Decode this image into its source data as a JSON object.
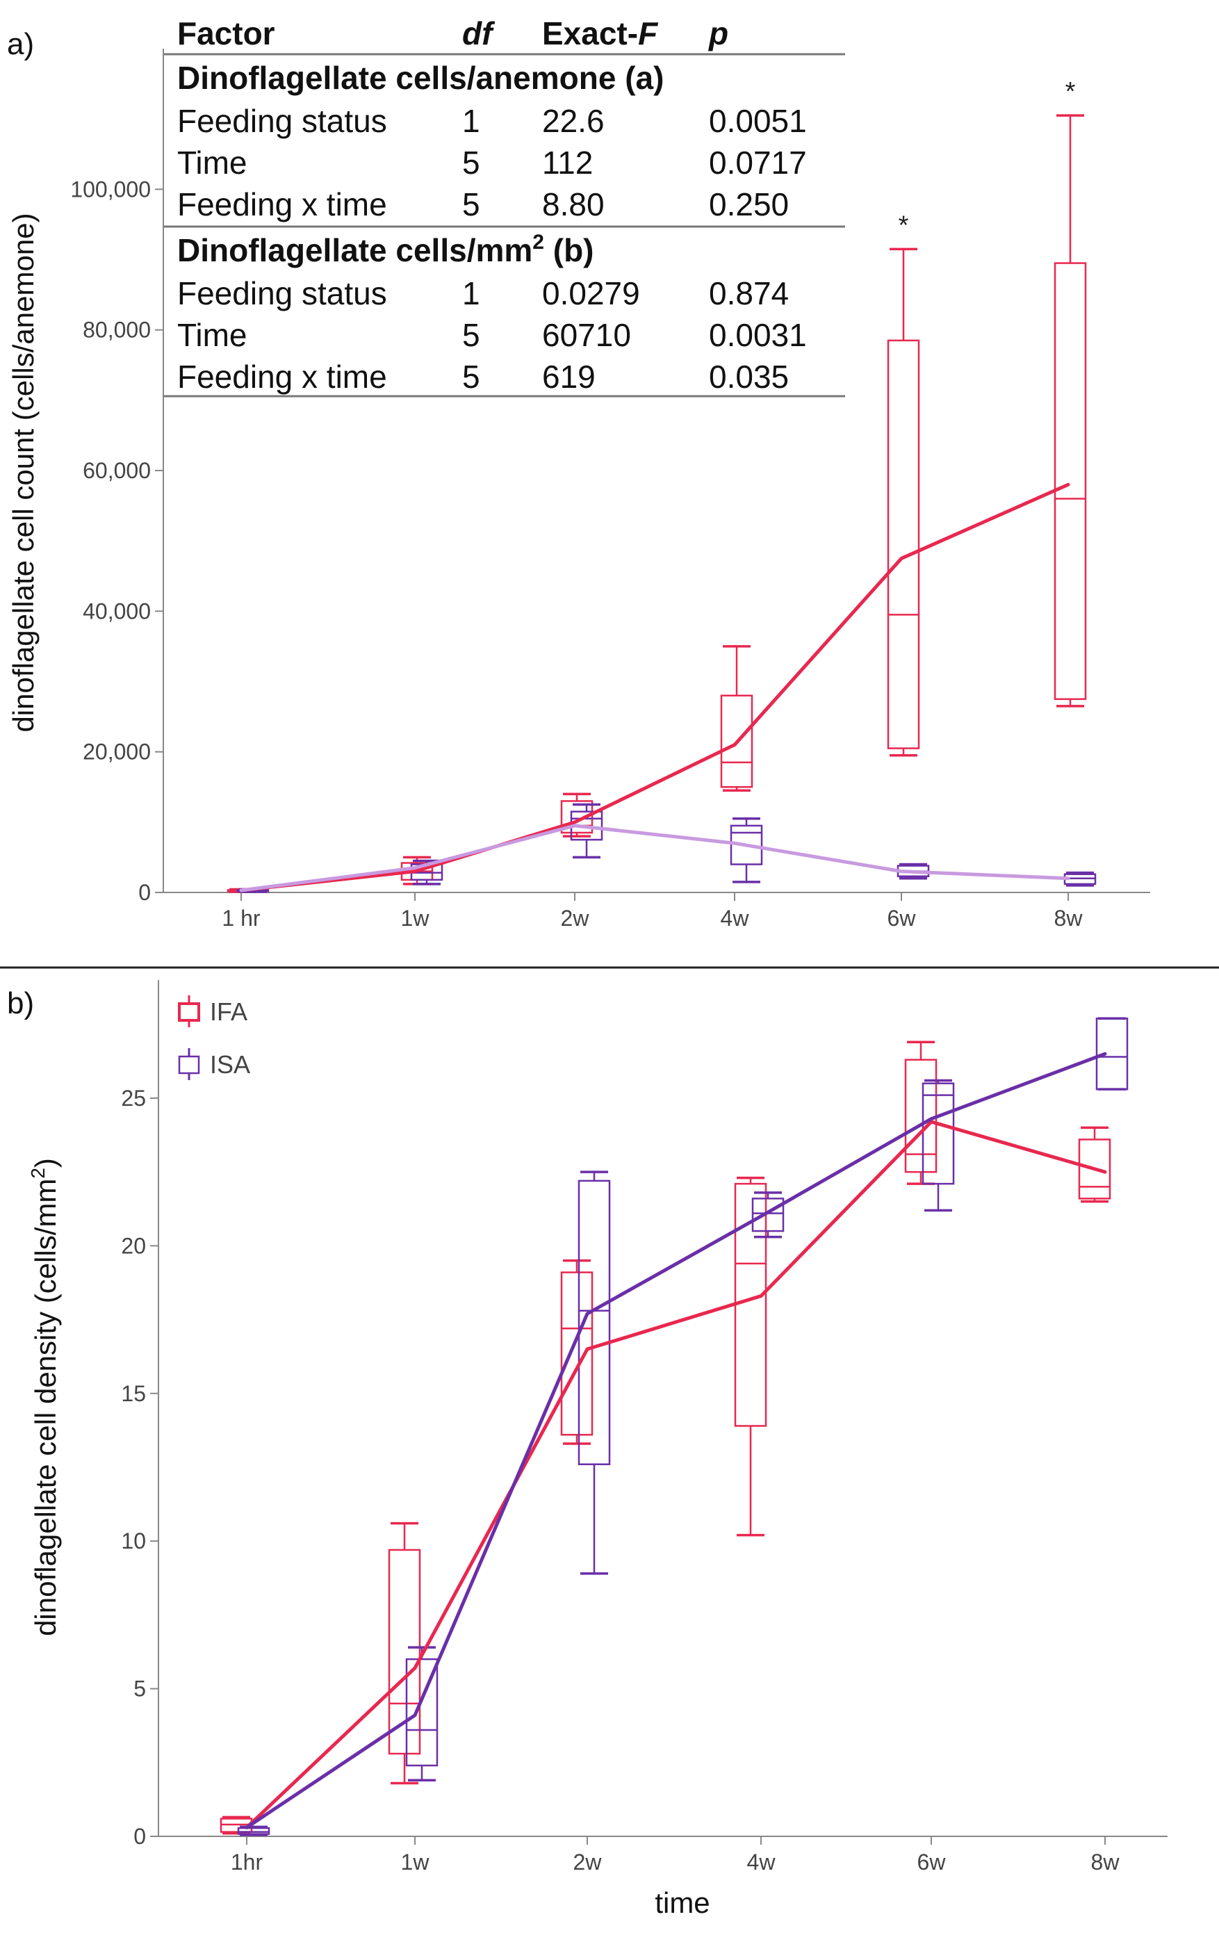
{
  "panels": {
    "a": {
      "label": "a)"
    },
    "b": {
      "label": "b)"
    }
  },
  "stats_table": {
    "headers": [
      "Factor",
      "df",
      "Exact-",
      "F",
      "p"
    ],
    "section_a": "Dinoflagellate cells/anemone (a)",
    "section_b_prefix": "Dinoflagellate cells/mm",
    "section_b_sup": "2",
    "section_b_suffix": " (b)",
    "rows_a": [
      [
        "Feeding status",
        "1",
        "22.6",
        "0.0051"
      ],
      [
        "Time",
        "5",
        "112",
        "0.0717"
      ],
      [
        "Feeding x time",
        "5",
        "8.80",
        "0.250"
      ]
    ],
    "rows_b": [
      [
        "Feeding status",
        "1",
        "0.0279",
        "0.874"
      ],
      [
        "Time",
        "5",
        "60710",
        "0.0031"
      ],
      [
        "Feeding x time",
        "5",
        "619",
        "0.035"
      ]
    ]
  },
  "colors": {
    "IFA": "#e8284f",
    "ISA": "#6a2fa8",
    "ISA_trend_a": "#c89ae0",
    "axis": "#888888"
  },
  "chart_data": [
    {
      "type": "box",
      "panel": "a",
      "xlabel": "",
      "ylabel": "dinoflagellate cell count (cells/anemone)",
      "categories": [
        "1 hr",
        "1w",
        "2w",
        "4w",
        "6w",
        "8w"
      ],
      "ylim": [
        0,
        120000
      ],
      "yticks": [
        0,
        20000,
        40000,
        60000,
        80000,
        100000
      ],
      "ytick_labels": [
        "0",
        "20,000",
        "40,000",
        "60,000",
        "80,000",
        "100,000"
      ],
      "significance": [
        {
          "category": "6w",
          "label": "*"
        },
        {
          "category": "8w",
          "label": "*"
        }
      ],
      "series": [
        {
          "name": "IFA",
          "boxes": [
            {
              "category": "1 hr",
              "min": 100,
              "q1": 150,
              "median": 250,
              "q3": 350,
              "max": 450
            },
            {
              "category": "1w",
              "min": 1200,
              "q1": 1800,
              "median": 3000,
              "q3": 4200,
              "max": 5000
            },
            {
              "category": "2w",
              "min": 8000,
              "q1": 8500,
              "median": 9500,
              "q3": 13000,
              "max": 14000
            },
            {
              "category": "4w",
              "min": 14500,
              "q1": 15000,
              "median": 18500,
              "q3": 28000,
              "max": 35000
            },
            {
              "category": "6w",
              "min": 19500,
              "q1": 20500,
              "median": 39500,
              "q3": 78500,
              "max": 91500
            },
            {
              "category": "8w",
              "min": 26500,
              "q1": 27500,
              "median": 56000,
              "q3": 89500,
              "max": 110500
            }
          ],
          "trend": [
            300,
            3000,
            10000,
            21000,
            47500,
            58000
          ]
        },
        {
          "name": "ISA",
          "boxes": [
            {
              "category": "1 hr",
              "min": 100,
              "q1": 150,
              "median": 250,
              "q3": 350,
              "max": 450
            },
            {
              "category": "1w",
              "min": 1200,
              "q1": 1800,
              "median": 2800,
              "q3": 4000,
              "max": 4500
            },
            {
              "category": "2w",
              "min": 5000,
              "q1": 7500,
              "median": 10500,
              "q3": 11500,
              "max": 12500
            },
            {
              "category": "4w",
              "min": 1500,
              "q1": 4000,
              "median": 8500,
              "q3": 9500,
              "max": 10500
            },
            {
              "category": "6w",
              "min": 2000,
              "q1": 2300,
              "median": 3000,
              "q3": 3800,
              "max": 4000
            },
            {
              "category": "8w",
              "min": 1000,
              "q1": 1200,
              "median": 2000,
              "q3": 2600,
              "max": 2800
            }
          ],
          "trend": [
            300,
            3500,
            9500,
            7000,
            3000,
            2000
          ]
        }
      ]
    },
    {
      "type": "box",
      "panel": "b",
      "xlabel": "time",
      "ylabel_prefix": "dinoflagellate cell density (cells/mm",
      "ylabel_sup": "2",
      "ylabel_suffix": ")",
      "categories": [
        "1hr",
        "1w",
        "2w",
        "4w",
        "6w",
        "8w"
      ],
      "ylim": [
        0,
        29
      ],
      "yticks": [
        0,
        5,
        10,
        15,
        20,
        25
      ],
      "ytick_labels": [
        "0",
        "5",
        "10",
        "15",
        "20",
        "25"
      ],
      "legend": {
        "position": "top-left",
        "entries": [
          "IFA",
          "ISA"
        ]
      },
      "series": [
        {
          "name": "IFA",
          "boxes": [
            {
              "category": "1hr",
              "min": 0.1,
              "q1": 0.15,
              "median": 0.4,
              "q3": 0.6,
              "max": 0.65
            },
            {
              "category": "1w",
              "min": 1.8,
              "q1": 2.8,
              "median": 4.5,
              "q3": 9.7,
              "max": 10.6
            },
            {
              "category": "2w",
              "min": 13.3,
              "q1": 13.6,
              "median": 17.2,
              "q3": 19.1,
              "max": 19.5
            },
            {
              "category": "4w",
              "min": 10.2,
              "q1": 13.9,
              "median": 19.4,
              "q3": 22.1,
              "max": 22.3
            },
            {
              "category": "6w",
              "min": 22.1,
              "q1": 22.5,
              "median": 23.1,
              "q3": 26.3,
              "max": 26.9
            },
            {
              "category": "8w",
              "min": 21.5,
              "q1": 21.6,
              "median": 22.0,
              "q3": 23.6,
              "max": 24.0
            }
          ],
          "trend": [
            0.3,
            5.7,
            16.5,
            18.3,
            24.2,
            22.5
          ]
        },
        {
          "name": "ISA",
          "boxes": [
            {
              "category": "1hr",
              "min": 0.05,
              "q1": 0.08,
              "median": 0.15,
              "q3": 0.28,
              "max": 0.32
            },
            {
              "category": "1w",
              "min": 1.9,
              "q1": 2.4,
              "median": 3.6,
              "q3": 6.0,
              "max": 6.4
            },
            {
              "category": "2w",
              "min": 8.9,
              "q1": 12.6,
              "median": 17.8,
              "q3": 22.2,
              "max": 22.5
            },
            {
              "category": "4w",
              "min": 20.3,
              "q1": 20.5,
              "median": 21.1,
              "q3": 21.6,
              "max": 21.8
            },
            {
              "category": "6w",
              "min": 21.2,
              "q1": 22.1,
              "median": 25.1,
              "q3": 25.5,
              "max": 25.6
            },
            {
              "category": "8w",
              "min": 25.3,
              "q1": 25.3,
              "median": 26.4,
              "q3": 27.7,
              "max": 27.7
            }
          ],
          "trend": [
            0.3,
            4.1,
            17.7,
            21.0,
            24.3,
            26.5
          ]
        }
      ]
    }
  ]
}
